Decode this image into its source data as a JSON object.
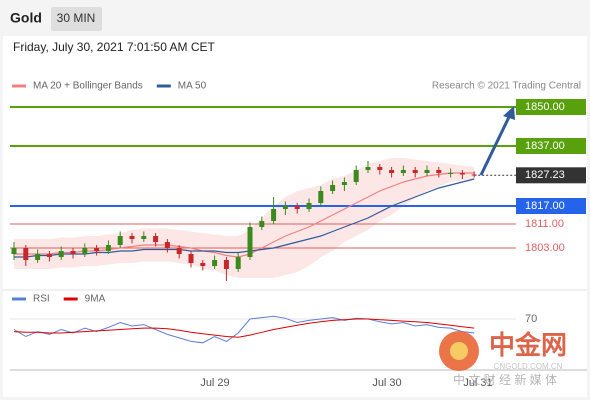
{
  "header": {
    "title": "Gold",
    "timeframe": "30 MIN",
    "datetime": "Friday, July 30, 2021 7:01:50 AM CET"
  },
  "copyright": "Research © 2021 Trading Central",
  "x_axis_labels": [
    "Jul 29",
    "Jul 30",
    "Jul 31"
  ],
  "watermark": {
    "logo": "中金网",
    "site": "CNGOLD.COM.CN",
    "slogan": "中 文 财 经 新 媒 体"
  },
  "chart_data": [
    {
      "type": "candlestick",
      "up_color": "#3a8a1e",
      "down_color": "#c62828",
      "ylim": [
        1792,
        1854
      ],
      "candles": [
        [
          1801,
          1805,
          1799,
          1803
        ],
        [
          1803,
          1804,
          1797,
          1799
        ],
        [
          1799,
          1802.5,
          1798,
          1801
        ],
        [
          1801,
          1802,
          1798.5,
          1800
        ],
        [
          1800,
          1803.5,
          1799,
          1802
        ],
        [
          1802,
          1803,
          1799.5,
          1801
        ],
        [
          1801,
          1804.5,
          1800,
          1803
        ],
        [
          1803,
          1804,
          1800.5,
          1802
        ],
        [
          1802,
          1805.5,
          1801,
          1804
        ],
        [
          1804,
          1808.5,
          1803,
          1807
        ],
        [
          1807,
          1808,
          1804.5,
          1806
        ],
        [
          1806,
          1808.5,
          1805,
          1807
        ],
        [
          1807,
          1808,
          1803.5,
          1805
        ],
        [
          1805,
          1806,
          1801.5,
          1803
        ],
        [
          1803,
          1804,
          1799.5,
          1801
        ],
        [
          1801,
          1802,
          1796.5,
          1798
        ],
        [
          1798,
          1799,
          1795.5,
          1797
        ],
        [
          1797,
          1800.5,
          1796,
          1799
        ],
        [
          1799,
          1800,
          1792,
          1796
        ],
        [
          1796,
          1801.5,
          1795,
          1800
        ],
        [
          1800,
          1811.5,
          1799,
          1810
        ],
        [
          1810,
          1813.5,
          1809,
          1812
        ],
        [
          1812,
          1820,
          1811,
          1816
        ],
        [
          1816,
          1818.5,
          1814,
          1817
        ],
        [
          1817,
          1818,
          1814.5,
          1816
        ],
        [
          1816,
          1819.5,
          1815,
          1818
        ],
        [
          1818,
          1823.5,
          1817,
          1822
        ],
        [
          1822,
          1825.5,
          1821,
          1824
        ],
        [
          1824,
          1826.5,
          1822,
          1825
        ],
        [
          1825,
          1830.5,
          1824,
          1829
        ],
        [
          1829,
          1832,
          1828,
          1830
        ],
        [
          1830,
          1831,
          1827.5,
          1829
        ],
        [
          1829,
          1830,
          1826.5,
          1828
        ],
        [
          1828,
          1830.5,
          1827,
          1829
        ],
        [
          1829,
          1830,
          1826.5,
          1828
        ],
        [
          1828,
          1830.5,
          1827,
          1829
        ],
        [
          1829,
          1830,
          1826.5,
          1828
        ],
        [
          1828,
          1829.5,
          1826.5,
          1828
        ],
        [
          1828,
          1829,
          1826,
          1827.5
        ],
        [
          1827.5,
          1828.5,
          1826.5,
          1827.23
        ]
      ],
      "bands": {
        "color": "#fbd5d5",
        "upper": [
          1806,
          1806,
          1806,
          1806,
          1806.5,
          1806.5,
          1807,
          1807,
          1807.5,
          1808,
          1809,
          1809.5,
          1809.5,
          1809.5,
          1809,
          1808.5,
          1808,
          1807.5,
          1807,
          1807,
          1809,
          1813,
          1817,
          1820,
          1822,
          1823,
          1824,
          1826,
          1827,
          1829,
          1831,
          1832,
          1833,
          1833,
          1832.5,
          1832,
          1831.5,
          1831,
          1830.5,
          1830
        ],
        "lower": [
          1796,
          1796,
          1796,
          1796,
          1796.5,
          1796.5,
          1797,
          1797,
          1797.5,
          1798,
          1798,
          1798.5,
          1798.5,
          1798.5,
          1798,
          1797.5,
          1796,
          1795.5,
          1794,
          1793,
          1793,
          1793,
          1793,
          1794,
          1795,
          1797,
          1800,
          1802,
          1805,
          1807,
          1809,
          1812,
          1814,
          1817,
          1819.5,
          1822,
          1823.5,
          1825,
          1825.5,
          1826
        ]
      },
      "series": [
        {
          "name": "MA 20 + Bollinger Bands",
          "color": "#f08080",
          "values": [
            1801,
            1801,
            1801,
            1801,
            1801.5,
            1801.5,
            1802,
            1802,
            1802.5,
            1803,
            1803.5,
            1804,
            1804,
            1804,
            1803.5,
            1803,
            1802,
            1801.5,
            1800.5,
            1800,
            1801,
            1803,
            1805,
            1807,
            1808.5,
            1810,
            1812,
            1814,
            1816,
            1818,
            1820,
            1822,
            1823.5,
            1825,
            1826,
            1827,
            1827.5,
            1828,
            1828,
            1828
          ]
        },
        {
          "name": "MA 50",
          "color": "#2f5b9a",
          "values": [
            1800,
            1800,
            1800.5,
            1800.5,
            1801,
            1801,
            1801,
            1801.5,
            1801.5,
            1802,
            1802,
            1802.5,
            1802.5,
            1802.5,
            1802.5,
            1802,
            1802,
            1802,
            1801.5,
            1801.5,
            1802,
            1802.5,
            1803,
            1804,
            1805,
            1806,
            1807,
            1808.5,
            1810,
            1811.5,
            1813,
            1815,
            1817,
            1818.5,
            1820,
            1821.5,
            1823,
            1824,
            1825,
            1826
          ]
        }
      ],
      "levels": [
        {
          "value": 1850,
          "label": "1850.00",
          "color": "#58a00c",
          "style": "box",
          "line": "solid"
        },
        {
          "value": 1837,
          "label": "1837.00",
          "color": "#58a00c",
          "style": "box",
          "line": "solid"
        },
        {
          "value": 1827.23,
          "label": "1827.23",
          "color": "#333333",
          "style": "box",
          "line": "dotted"
        },
        {
          "value": 1817,
          "label": "1817.00",
          "color": "#2563eb",
          "style": "box",
          "line": "solid"
        },
        {
          "value": 1811,
          "label": "1811.00",
          "color": "#e06060",
          "style": "plain",
          "line": "solid"
        },
        {
          "value": 1803,
          "label": "1803.00",
          "color": "#e06060",
          "style": "plain",
          "line": "solid"
        }
      ]
    },
    {
      "type": "line",
      "ylim": [
        0,
        100
      ],
      "yticks": [
        70
      ],
      "series": [
        {
          "name": "RSI",
          "color": "#5b7fd6",
          "values": [
            55,
            45,
            52,
            48,
            55,
            50,
            57,
            52,
            58,
            65,
            60,
            62,
            55,
            48,
            43,
            38,
            36,
            45,
            38,
            50,
            70,
            72,
            74,
            71,
            65,
            68,
            70,
            72,
            68,
            71,
            70,
            66,
            63,
            65,
            60,
            62,
            58,
            57,
            52,
            50
          ]
        },
        {
          "name": "9MA",
          "color": "#e00000",
          "values": [
            52,
            51,
            51,
            50,
            50,
            51,
            52,
            53,
            54,
            55,
            56,
            57,
            57,
            56,
            54,
            51,
            49,
            47,
            45,
            44,
            47,
            51,
            55,
            58,
            61,
            64,
            66,
            68,
            69,
            70,
            70,
            69,
            68,
            67,
            66,
            65,
            63,
            61,
            59,
            57
          ]
        }
      ]
    }
  ]
}
